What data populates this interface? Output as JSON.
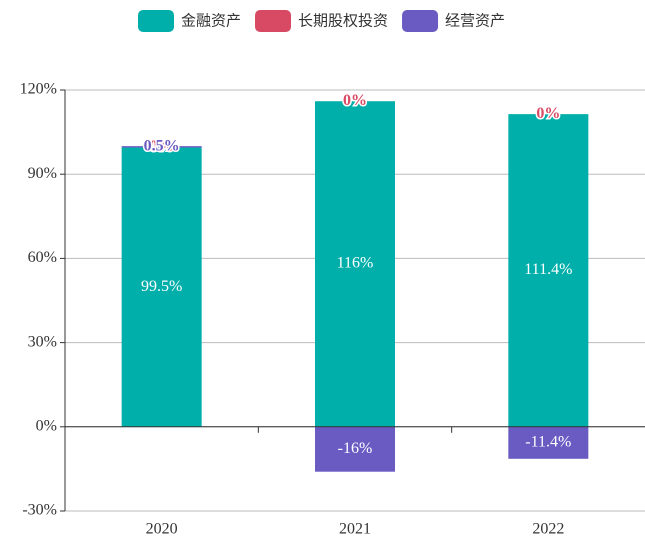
{
  "chart_data": {
    "type": "stacked_bar",
    "categories": [
      "2020",
      "2021",
      "2022"
    ],
    "series": [
      {
        "name": "金融资产",
        "color": "#00aeaa",
        "values": [
          99.5,
          116,
          111.4
        ],
        "value_labels": [
          "99.5%",
          "116%",
          "111.4%"
        ]
      },
      {
        "name": "长期股权投资",
        "color": "#d84a63",
        "values": [
          0,
          0,
          0
        ],
        "value_labels": [
          "0%",
          "0%",
          "0%"
        ]
      },
      {
        "name": "经营资产",
        "color": "#6a5bc2",
        "values": [
          0.5,
          -16,
          -11.4
        ],
        "value_labels": [
          "0.5%",
          "-16%",
          "-11.4%"
        ]
      }
    ],
    "ylim": [
      -30,
      120
    ],
    "yticks": [
      {
        "value": -30,
        "label": "-30%"
      },
      {
        "value": 0,
        "label": "0%"
      },
      {
        "value": 30,
        "label": "30%"
      },
      {
        "value": 60,
        "label": "60%"
      },
      {
        "value": 90,
        "label": "90%"
      },
      {
        "value": 120,
        "label": "120%"
      }
    ],
    "grid": true,
    "legend": "top"
  }
}
